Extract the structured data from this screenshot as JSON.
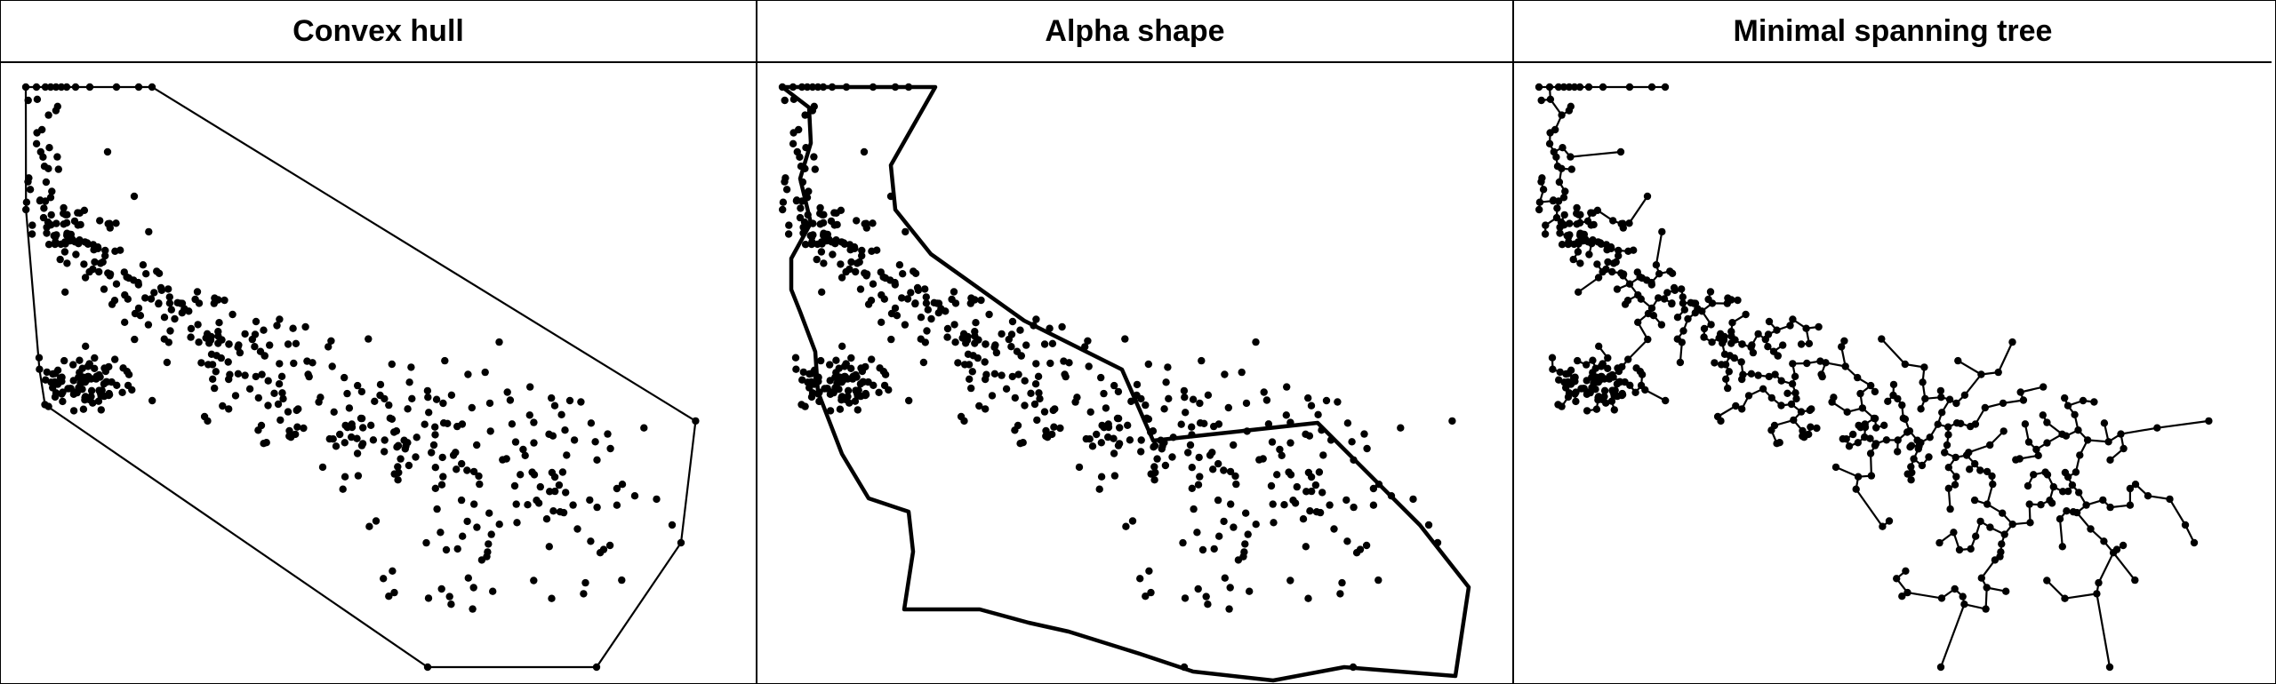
{
  "panels": [
    {
      "id": "convex",
      "title": "Convex hull"
    },
    {
      "id": "alpha",
      "title": "Alpha shape"
    },
    {
      "id": "mst",
      "title": "Minimal spanning tree"
    }
  ],
  "colors": {
    "ink": "#000000",
    "background": "#ffffff"
  }
}
